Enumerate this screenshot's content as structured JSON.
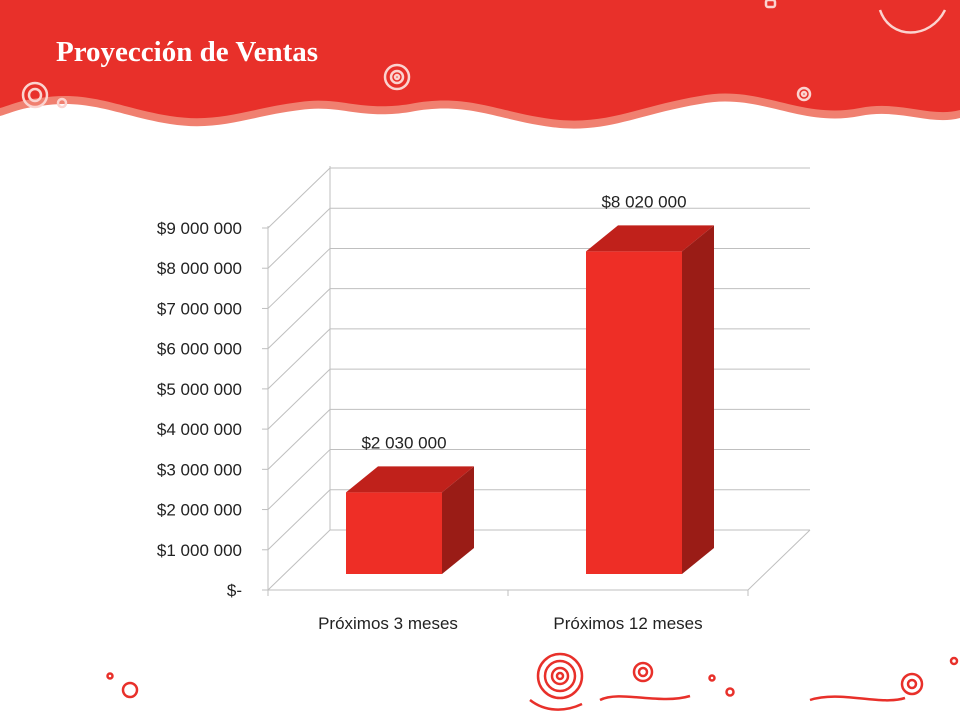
{
  "slide": {
    "title": "Proyección de Ventas",
    "colors": {
      "banner": "#E8302A",
      "banner_edge": "#F08070",
      "bar_front": "#EE2E26",
      "bar_top": "#C0211B",
      "bar_side": "#9A1C16",
      "grid": "#BFBFBF"
    },
    "decorations": [
      "spiral-swirl-icon",
      "circle-swirl-icon"
    ]
  },
  "chart_data": {
    "type": "bar",
    "style": "3d-column",
    "categories": [
      "Próximos 3 meses",
      "Próximos 12 meses"
    ],
    "values": [
      2030000,
      8020000
    ],
    "value_labels": [
      "$2 030 000",
      "$8 020 000"
    ],
    "ylim": [
      0,
      9000000
    ],
    "yticks": [
      0,
      1000000,
      2000000,
      3000000,
      4000000,
      5000000,
      6000000,
      7000000,
      8000000,
      9000000
    ],
    "ytick_labels": [
      "$-",
      "$1 000 000",
      "$2 000 000",
      "$3 000 000",
      "$4 000 000",
      "$5 000 000",
      "$6 000 000",
      "$7 000 000",
      "$8 000 000",
      "$9 000 000"
    ],
    "grid": true,
    "legend": "none",
    "title": "",
    "xlabel": "",
    "ylabel": ""
  }
}
